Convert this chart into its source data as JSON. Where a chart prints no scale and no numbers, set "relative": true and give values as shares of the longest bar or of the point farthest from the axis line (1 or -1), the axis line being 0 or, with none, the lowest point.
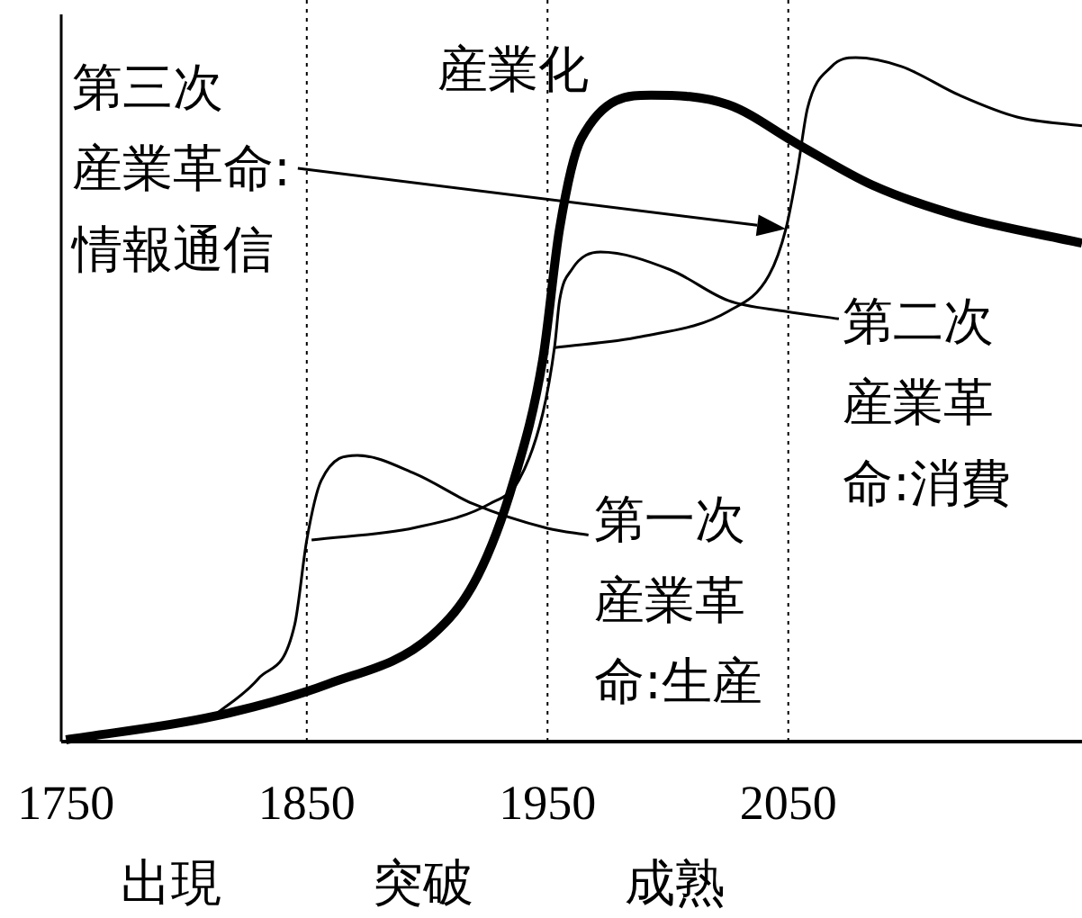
{
  "chart_data": {
    "type": "line",
    "relative": true,
    "xlim": [
      1748,
      2172
    ],
    "xticks": [
      1750,
      1850,
      1950,
      2050
    ],
    "line_style": "solid",
    "marker": "none",
    "series": [
      {
        "name": "産業化",
        "color": "#000000",
        "x": [
          1750,
          1811,
          1859,
          1902,
          1921,
          1936,
          1948,
          1955,
          1964,
          1993,
          2025,
          2054,
          2085,
          2121,
          2172
        ],
        "values": [
          0,
          0.034,
          0.082,
          0.153,
          0.24,
          0.38,
          0.557,
          0.749,
          0.881,
          0.945,
          0.931,
          0.873,
          0.813,
          0.768,
          0.728
        ]
      },
      {
        "name": "第一次産業革命:生産",
        "color": "#000000",
        "x": [
          1811,
          1830,
          1845,
          1850,
          1856,
          1871,
          1895,
          1919,
          1950,
          1967
        ],
        "values": [
          0.034,
          0.09,
          0.169,
          0.293,
          0.38,
          0.417,
          0.39,
          0.346,
          0.31,
          0.3
        ]
      },
      {
        "name": "第二次産業革命:消費",
        "color": "#000000",
        "x": [
          1852,
          1895,
          1926,
          1938,
          1948,
          1953,
          1955,
          1960,
          1972,
          2001,
          2025,
          2049,
          2071
        ],
        "values": [
          0.293,
          0.311,
          0.346,
          0.38,
          0.478,
          0.578,
          0.644,
          0.689,
          0.715,
          0.689,
          0.644,
          0.628,
          0.617
        ]
      },
      {
        "color": "#000000",
        "x": [
          1953,
          1989,
          2025,
          2042,
          2049,
          2054,
          2058,
          2068,
          2078,
          2097,
          2121,
          2145,
          2172
        ],
        "values": [
          0.575,
          0.591,
          0.628,
          0.681,
          0.749,
          0.839,
          0.926,
          0.987,
          1.0,
          0.987,
          0.945,
          0.913,
          0.9
        ]
      }
    ],
    "ref_lines": [
      {
        "axis": "x",
        "value": 1850,
        "line_style": "dotted",
        "color": "#000000"
      },
      {
        "axis": "x",
        "value": 1950,
        "line_style": "dotted",
        "color": "#000000"
      },
      {
        "axis": "x",
        "value": 2050,
        "line_style": "dotted",
        "color": "#000000"
      }
    ],
    "annotations": [
      "第三次産業革命:情報通信",
      "出現",
      "突破",
      "成熟"
    ]
  }
}
